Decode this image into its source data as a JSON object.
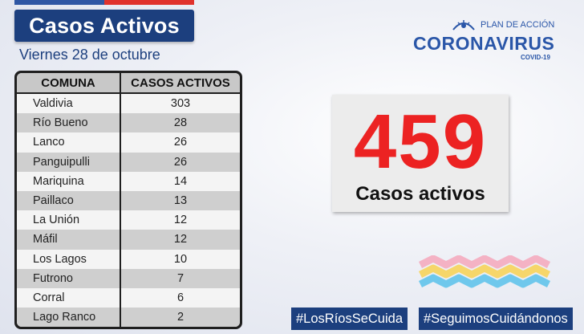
{
  "header": {
    "title": "Casos Activos",
    "date": "Viernes 28 de octubre"
  },
  "table": {
    "columns": [
      "COMUNA",
      "CASOS ACTIVOS"
    ],
    "rows": [
      {
        "comuna": "Valdivia",
        "casos": "303"
      },
      {
        "comuna": "Río Bueno",
        "casos": "28"
      },
      {
        "comuna": "Lanco",
        "casos": "26"
      },
      {
        "comuna": "Panguipulli",
        "casos": "26"
      },
      {
        "comuna": "Mariquina",
        "casos": "14"
      },
      {
        "comuna": "Paillaco",
        "casos": "13"
      },
      {
        "comuna": "La Unión",
        "casos": "12"
      },
      {
        "comuna": "Máfil",
        "casos": "12"
      },
      {
        "comuna": "Los Lagos",
        "casos": "10"
      },
      {
        "comuna": "Futrono",
        "casos": "7"
      },
      {
        "comuna": "Corral",
        "casos": "6"
      },
      {
        "comuna": "Lago Ranco",
        "casos": "2"
      }
    ]
  },
  "logo": {
    "plan": "PLAN DE ACCIÓN",
    "name": "CORONAVIRUS",
    "sub": "COVID-19"
  },
  "total": {
    "value": "459",
    "label": "Casos activos"
  },
  "hashtags": [
    "#LosRíosSeCuida",
    "#SeguimosCuidándonos"
  ],
  "colors": {
    "navy": "#1c3f7e",
    "accent_red": "#ec2222",
    "logo_blue": "#2a56a8"
  }
}
